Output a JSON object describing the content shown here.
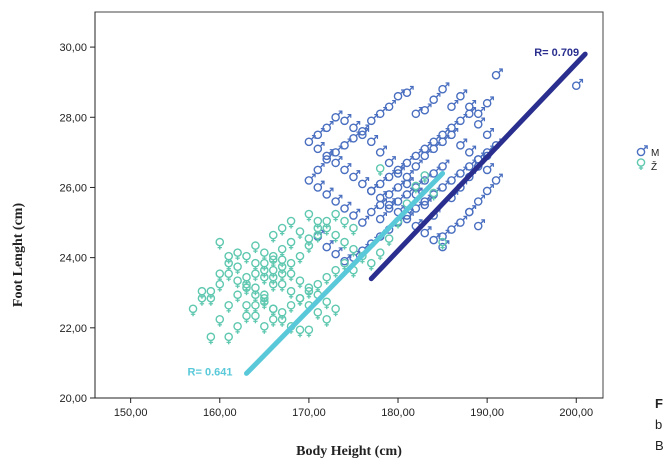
{
  "chart_data": {
    "type": "scatter",
    "title": "",
    "xlabel": "Body Height (cm)",
    "ylabel": "Foot Lenght (cm)",
    "xlim": [
      146,
      203
    ],
    "ylim": [
      20,
      31
    ],
    "x_ticks": [
      "150,00",
      "160,00",
      "170,00",
      "180,00",
      "190,00",
      "200,00"
    ],
    "y_ticks": [
      "20,00",
      "22,00",
      "24,00",
      "26,00",
      "28,00",
      "30,00"
    ],
    "grid": false,
    "legend_position": "right",
    "series": [
      {
        "name": "M",
        "symbol": "male",
        "color": "#4a6fc0",
        "points": [
          [
            200,
            28.9
          ],
          [
            191,
            29.2
          ],
          [
            190,
            28.4
          ],
          [
            189,
            28.1
          ],
          [
            188,
            28.3
          ],
          [
            187,
            28.6
          ],
          [
            186,
            28.3
          ],
          [
            185,
            28.8
          ],
          [
            184,
            28.5
          ],
          [
            183,
            28.2
          ],
          [
            182,
            28.1
          ],
          [
            181,
            28.7
          ],
          [
            180,
            28.6
          ],
          [
            179,
            28.3
          ],
          [
            178,
            28.1
          ],
          [
            177,
            27.9
          ],
          [
            176,
            27.6
          ],
          [
            175,
            27.4
          ],
          [
            174,
            27.2
          ],
          [
            173,
            27.0
          ],
          [
            172,
            26.8
          ],
          [
            171,
            26.5
          ],
          [
            170,
            26.2
          ],
          [
            171,
            26.0
          ],
          [
            172,
            25.8
          ],
          [
            173,
            25.6
          ],
          [
            174,
            25.4
          ],
          [
            175,
            25.2
          ],
          [
            176,
            25.0
          ],
          [
            177,
            25.3
          ],
          [
            178,
            25.5
          ],
          [
            179,
            25.8
          ],
          [
            180,
            26.0
          ],
          [
            181,
            26.3
          ],
          [
            182,
            26.6
          ],
          [
            183,
            26.9
          ],
          [
            184,
            27.1
          ],
          [
            185,
            27.3
          ],
          [
            186,
            27.5
          ],
          [
            187,
            27.2
          ],
          [
            188,
            27.0
          ],
          [
            189,
            26.8
          ],
          [
            190,
            26.5
          ],
          [
            191,
            26.2
          ],
          [
            190,
            25.9
          ],
          [
            189,
            25.6
          ],
          [
            188,
            25.3
          ],
          [
            187,
            25.0
          ],
          [
            186,
            24.8
          ],
          [
            185,
            24.6
          ],
          [
            184,
            25.2
          ],
          [
            183,
            25.5
          ],
          [
            182,
            25.8
          ],
          [
            181,
            26.1
          ],
          [
            180,
            26.4
          ],
          [
            179,
            26.7
          ],
          [
            178,
            27.0
          ],
          [
            177,
            27.3
          ],
          [
            176,
            27.5
          ],
          [
            175,
            27.7
          ],
          [
            174,
            27.9
          ],
          [
            173,
            28.0
          ],
          [
            172,
            27.7
          ],
          [
            171,
            27.5
          ],
          [
            170,
            27.3
          ],
          [
            171,
            27.1
          ],
          [
            172,
            26.9
          ],
          [
            173,
            26.7
          ],
          [
            174,
            26.5
          ],
          [
            175,
            26.3
          ],
          [
            176,
            26.1
          ],
          [
            177,
            25.9
          ],
          [
            178,
            25.7
          ],
          [
            179,
            25.5
          ],
          [
            180,
            25.3
          ],
          [
            181,
            25.1
          ],
          [
            182,
            24.9
          ],
          [
            183,
            24.7
          ],
          [
            184,
            24.5
          ],
          [
            185,
            24.3
          ],
          [
            186,
            25.7
          ],
          [
            187,
            26.0
          ],
          [
            188,
            26.3
          ],
          [
            189,
            26.6
          ],
          [
            190,
            26.9
          ],
          [
            191,
            27.2
          ],
          [
            190,
            27.5
          ],
          [
            189,
            27.8
          ],
          [
            188,
            28.1
          ],
          [
            187,
            27.9
          ],
          [
            186,
            27.7
          ],
          [
            185,
            27.5
          ],
          [
            184,
            27.3
          ],
          [
            183,
            27.1
          ],
          [
            182,
            26.9
          ],
          [
            181,
            26.7
          ],
          [
            180,
            26.5
          ],
          [
            179,
            26.3
          ],
          [
            178,
            26.1
          ],
          [
            177,
            25.9
          ],
          [
            171,
            24.6
          ],
          [
            172,
            24.3
          ],
          [
            173,
            24.1
          ],
          [
            174,
            23.9
          ],
          [
            175,
            24.0
          ],
          [
            176,
            24.2
          ],
          [
            177,
            24.4
          ],
          [
            178,
            24.6
          ],
          [
            179,
            24.8
          ],
          [
            180,
            25.0
          ],
          [
            181,
            25.2
          ],
          [
            182,
            25.4
          ],
          [
            183,
            25.6
          ],
          [
            184,
            25.8
          ],
          [
            185,
            26.0
          ],
          [
            186,
            26.2
          ],
          [
            187,
            26.4
          ],
          [
            188,
            26.6
          ],
          [
            189,
            26.8
          ],
          [
            190,
            27.0
          ],
          [
            188,
            25.3
          ],
          [
            189,
            24.9
          ],
          [
            178,
            25.1
          ],
          [
            179,
            25.4
          ],
          [
            180,
            25.6
          ],
          [
            181,
            25.8
          ],
          [
            182,
            26.0
          ],
          [
            183,
            26.2
          ],
          [
            184,
            26.4
          ],
          [
            185,
            26.6
          ]
        ]
      },
      {
        "name": "Ž",
        "symbol": "female",
        "color": "#5fc8b0",
        "points": [
          [
            157,
            22.5
          ],
          [
            158,
            22.8
          ],
          [
            159,
            23.0
          ],
          [
            160,
            23.2
          ],
          [
            161,
            23.5
          ],
          [
            162,
            23.3
          ],
          [
            163,
            23.1
          ],
          [
            164,
            22.9
          ],
          [
            165,
            22.7
          ],
          [
            166,
            22.5
          ],
          [
            159,
            21.7
          ],
          [
            160,
            22.2
          ],
          [
            161,
            22.6
          ],
          [
            162,
            22.9
          ],
          [
            163,
            23.2
          ],
          [
            164,
            23.5
          ],
          [
            165,
            23.8
          ],
          [
            166,
            24.0
          ],
          [
            167,
            24.2
          ],
          [
            168,
            24.4
          ],
          [
            160,
            24.4
          ],
          [
            161,
            24.0
          ],
          [
            162,
            23.7
          ],
          [
            163,
            23.4
          ],
          [
            164,
            23.1
          ],
          [
            165,
            22.8
          ],
          [
            166,
            22.5
          ],
          [
            167,
            22.2
          ],
          [
            168,
            22.0
          ],
          [
            169,
            21.9
          ],
          [
            162,
            22.0
          ],
          [
            163,
            22.3
          ],
          [
            164,
            22.6
          ],
          [
            165,
            22.9
          ],
          [
            166,
            23.2
          ],
          [
            167,
            23.5
          ],
          [
            168,
            23.8
          ],
          [
            169,
            24.0
          ],
          [
            170,
            24.3
          ],
          [
            171,
            24.6
          ],
          [
            163,
            24.0
          ],
          [
            164,
            23.8
          ],
          [
            165,
            23.6
          ],
          [
            166,
            23.4
          ],
          [
            167,
            23.2
          ],
          [
            168,
            23.0
          ],
          [
            169,
            22.8
          ],
          [
            170,
            22.6
          ],
          [
            171,
            22.4
          ],
          [
            172,
            22.2
          ],
          [
            164,
            24.3
          ],
          [
            165,
            24.1
          ],
          [
            166,
            23.9
          ],
          [
            167,
            23.7
          ],
          [
            168,
            23.5
          ],
          [
            169,
            23.3
          ],
          [
            170,
            23.1
          ],
          [
            171,
            22.9
          ],
          [
            172,
            22.7
          ],
          [
            173,
            22.5
          ],
          [
            165,
            22.0
          ],
          [
            166,
            22.2
          ],
          [
            167,
            22.4
          ],
          [
            168,
            22.6
          ],
          [
            169,
            22.8
          ],
          [
            170,
            23.0
          ],
          [
            171,
            23.2
          ],
          [
            172,
            23.4
          ],
          [
            173,
            23.6
          ],
          [
            174,
            23.8
          ],
          [
            166,
            24.6
          ],
          [
            167,
            24.8
          ],
          [
            168,
            25.0
          ],
          [
            169,
            24.7
          ],
          [
            170,
            24.5
          ],
          [
            171,
            24.8
          ],
          [
            172,
            25.0
          ],
          [
            173,
            25.2
          ],
          [
            174,
            25.0
          ],
          [
            175,
            24.8
          ],
          [
            170,
            25.2
          ],
          [
            171,
            25.0
          ],
          [
            172,
            24.8
          ],
          [
            173,
            24.6
          ],
          [
            174,
            24.4
          ],
          [
            175,
            24.2
          ],
          [
            176,
            24.0
          ],
          [
            177,
            23.8
          ],
          [
            178,
            24.1
          ],
          [
            179,
            24.5
          ],
          [
            180,
            25.0
          ],
          [
            181,
            25.5
          ],
          [
            182,
            26.0
          ],
          [
            183,
            26.3
          ],
          [
            184,
            25.8
          ],
          [
            178,
            26.5
          ],
          [
            185,
            24.4
          ],
          [
            175,
            23.6
          ],
          [
            161,
            21.7
          ],
          [
            170,
            21.9
          ],
          [
            158,
            23.0
          ],
          [
            159,
            22.8
          ],
          [
            160,
            23.5
          ],
          [
            161,
            23.8
          ],
          [
            162,
            24.1
          ],
          [
            163,
            22.6
          ],
          [
            164,
            22.3
          ],
          [
            165,
            23.4
          ],
          [
            166,
            23.6
          ],
          [
            167,
            23.9
          ]
        ]
      }
    ],
    "fit_lines": [
      {
        "series": "M",
        "label": "R= 0.709",
        "x": [
          177,
          201
        ],
        "y": [
          23.4,
          29.8
        ],
        "color": "#2a2f8f"
      },
      {
        "series": "Ž",
        "label": "R= 0.641",
        "x": [
          163,
          185
        ],
        "y": [
          20.7,
          26.4
        ],
        "color": "#59c9d9"
      }
    ]
  },
  "side_note": {
    "line1": "F",
    "line2": "b",
    "line3": "B"
  }
}
